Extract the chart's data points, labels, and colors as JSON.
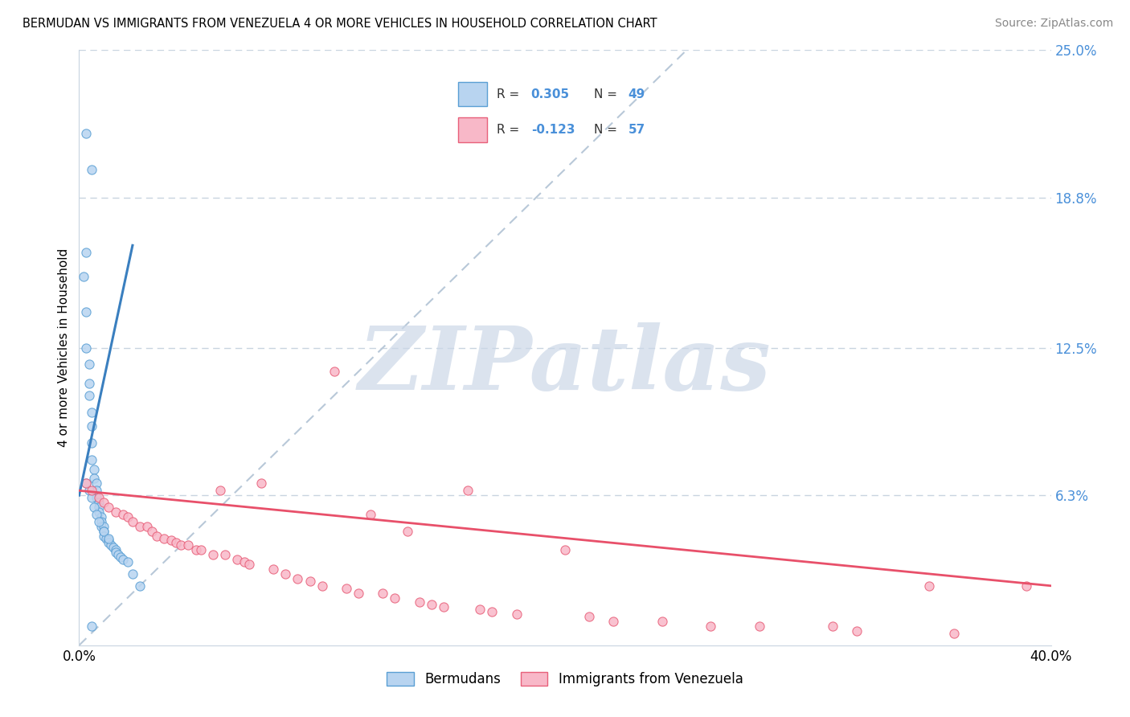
{
  "title": "BERMUDAN VS IMMIGRANTS FROM VENEZUELA 4 OR MORE VEHICLES IN HOUSEHOLD CORRELATION CHART",
  "source": "Source: ZipAtlas.com",
  "ylabel": "4 or more Vehicles in Household",
  "x_min": 0.0,
  "x_max": 0.4,
  "y_min": 0.0,
  "y_max": 0.25,
  "y_ticks_right": [
    0.0,
    0.063,
    0.125,
    0.188,
    0.25
  ],
  "y_tick_labels_right": [
    "",
    "6.3%",
    "12.5%",
    "18.8%",
    "25.0%"
  ],
  "blue_fill_color": "#b8d4f0",
  "pink_fill_color": "#f8b8c8",
  "blue_edge_color": "#5a9fd4",
  "pink_edge_color": "#e8607a",
  "blue_line_color": "#3a7fbf",
  "pink_line_color": "#e8506a",
  "diag_line_color": "#b8c8d8",
  "watermark": "ZIPatlas",
  "watermark_color": "#ccd8e8",
  "r_blue": 0.305,
  "n_blue": 49,
  "r_pink": -0.123,
  "n_pink": 57,
  "legend_blue_label": "Bermudans",
  "legend_pink_label": "Immigrants from Venezuela",
  "blue_scatter_x": [
    0.003,
    0.005,
    0.003,
    0.002,
    0.003,
    0.003,
    0.004,
    0.004,
    0.004,
    0.005,
    0.005,
    0.005,
    0.005,
    0.006,
    0.006,
    0.007,
    0.007,
    0.007,
    0.008,
    0.008,
    0.008,
    0.009,
    0.009,
    0.009,
    0.01,
    0.01,
    0.01,
    0.011,
    0.012,
    0.012,
    0.013,
    0.014,
    0.015,
    0.015,
    0.016,
    0.017,
    0.018,
    0.02,
    0.022,
    0.025,
    0.003,
    0.004,
    0.005,
    0.006,
    0.007,
    0.008,
    0.01,
    0.012,
    0.005
  ],
  "blue_scatter_y": [
    0.215,
    0.2,
    0.165,
    0.155,
    0.14,
    0.125,
    0.118,
    0.11,
    0.105,
    0.098,
    0.092,
    0.085,
    0.078,
    0.074,
    0.07,
    0.068,
    0.065,
    0.062,
    0.06,
    0.058,
    0.056,
    0.054,
    0.052,
    0.05,
    0.05,
    0.048,
    0.046,
    0.045,
    0.044,
    0.043,
    0.042,
    0.041,
    0.04,
    0.039,
    0.038,
    0.037,
    0.036,
    0.035,
    0.03,
    0.025,
    0.068,
    0.065,
    0.062,
    0.058,
    0.055,
    0.052,
    0.048,
    0.045,
    0.008
  ],
  "pink_scatter_x": [
    0.003,
    0.005,
    0.008,
    0.01,
    0.012,
    0.015,
    0.018,
    0.02,
    0.022,
    0.025,
    0.028,
    0.03,
    0.032,
    0.035,
    0.038,
    0.04,
    0.042,
    0.045,
    0.048,
    0.05,
    0.055,
    0.058,
    0.06,
    0.065,
    0.068,
    0.07,
    0.075,
    0.08,
    0.085,
    0.09,
    0.095,
    0.1,
    0.105,
    0.11,
    0.115,
    0.12,
    0.125,
    0.13,
    0.135,
    0.14,
    0.145,
    0.15,
    0.16,
    0.165,
    0.17,
    0.18,
    0.2,
    0.21,
    0.22,
    0.24,
    0.26,
    0.28,
    0.31,
    0.32,
    0.35,
    0.36,
    0.39
  ],
  "pink_scatter_y": [
    0.068,
    0.065,
    0.062,
    0.06,
    0.058,
    0.056,
    0.055,
    0.054,
    0.052,
    0.05,
    0.05,
    0.048,
    0.046,
    0.045,
    0.044,
    0.043,
    0.042,
    0.042,
    0.04,
    0.04,
    0.038,
    0.065,
    0.038,
    0.036,
    0.035,
    0.034,
    0.068,
    0.032,
    0.03,
    0.028,
    0.027,
    0.025,
    0.115,
    0.024,
    0.022,
    0.055,
    0.022,
    0.02,
    0.048,
    0.018,
    0.017,
    0.016,
    0.065,
    0.015,
    0.014,
    0.013,
    0.04,
    0.012,
    0.01,
    0.01,
    0.008,
    0.008,
    0.008,
    0.006,
    0.025,
    0.005,
    0.025
  ]
}
